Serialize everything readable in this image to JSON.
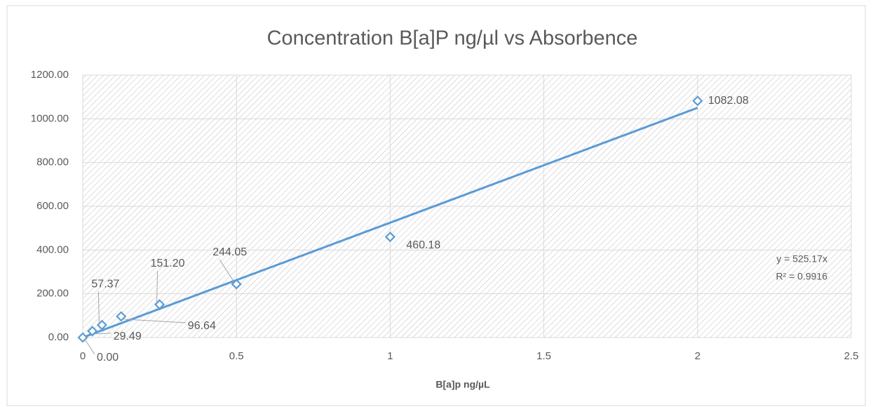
{
  "chart_data": {
    "type": "scatter",
    "title": "Concentration B[a]P ng/µl vs Absorbence",
    "x_label": "B[a]p ng/µL",
    "x": [
      0,
      0.03125,
      0.0625,
      0.125,
      0.25,
      0.5,
      1,
      2
    ],
    "values": [
      0,
      29.49,
      57.37,
      96.64,
      151.2,
      244.05,
      460.18,
      1082.08
    ],
    "value_labels": [
      "0.00",
      "29.49",
      "57.37",
      "96.64",
      "151.20",
      "244.05",
      "460.18",
      "1082.08"
    ],
    "color": "#5b9bd5",
    "xlim": [
      0,
      2.5
    ],
    "xticks": [
      0,
      0.5,
      1,
      1.5,
      2,
      2.5
    ],
    "ylim": [
      0,
      1200
    ],
    "yticks": [
      {
        "value": 0,
        "label": "0.00"
      },
      {
        "value": 200,
        "label": "200.00"
      },
      {
        "value": 400,
        "label": "400.00"
      },
      {
        "value": 600,
        "label": "600.00"
      },
      {
        "value": 800,
        "label": "800.00"
      },
      {
        "value": 1000,
        "label": "1000.00"
      },
      {
        "value": 1200,
        "label": "1200.00"
      }
    ],
    "grid": true,
    "trendline": {
      "slope": 525.17,
      "equation": "y = 525.17x",
      "r_squared": "R² = 0.9916"
    }
  }
}
